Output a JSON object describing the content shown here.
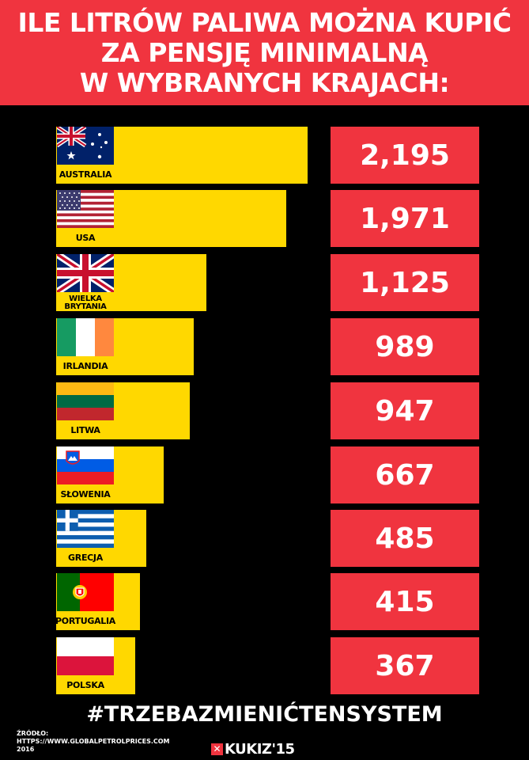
{
  "header": {
    "line1": "ILE LITRÓW PALIWA MOŻNA KUPIĆ",
    "line2": "ZA PENSJĘ MINIMALNĄ",
    "line3": "W WYBRANYCH KRAJACH:"
  },
  "chart_data": {
    "type": "bar",
    "title": "ILE LITRÓW PALIWA MOŻNA KUPIĆ ZA PENSJĘ MINIMALNĄ W WYBRANYCH KRAJACH:",
    "categories": [
      "AUSTRALIA",
      "USA",
      "WIELKA BRYTANIA",
      "IRLANDIA",
      "LITWA",
      "SŁOWENIA",
      "GRECJA",
      "PORTUGALIA",
      "POLSKA"
    ],
    "values": [
      2195,
      1971,
      1125,
      989,
      947,
      667,
      485,
      415,
      367
    ],
    "value_labels": [
      "2,195",
      "1,971",
      "1,125",
      "989",
      "947",
      "667",
      "485",
      "415",
      "367"
    ],
    "orientation": "horizontal"
  },
  "rows": [
    {
      "country": "AUSTRALIA",
      "value": "2,195",
      "flag": "australia-flag"
    },
    {
      "country": "USA",
      "value": "1,971",
      "flag": "usa-flag"
    },
    {
      "country_line1": "WIELKA",
      "country_line2": "BRYTANIA",
      "value": "1,125",
      "flag": "uk-flag"
    },
    {
      "country": "IRLANDIA",
      "value": "989",
      "flag": "ireland-flag"
    },
    {
      "country": "LITWA",
      "value": "947",
      "flag": "lithuania-flag"
    },
    {
      "country": "SŁOWENIA",
      "value": "667",
      "flag": "slovenia-flag"
    },
    {
      "country": "GRECJA",
      "value": "485",
      "flag": "greece-flag"
    },
    {
      "country": "PORTUGALIA",
      "value": "415",
      "flag": "portugal-flag"
    },
    {
      "country": "POLSKA",
      "value": "367",
      "flag": "poland-flag"
    }
  ],
  "footer": {
    "hashtag": "#TRZEBAZMIENIĆTENSYSTEM",
    "source_label": "ŹRÓDŁO:",
    "source_url": "HTTPS://WWW.GLOBALPETROLPRICES.COM",
    "source_year": "2016",
    "logo_text": "KUKIZ'15"
  },
  "colors": {
    "background": "#000000",
    "accent_red": "#f0343f",
    "bar_yellow": "#ffd800",
    "text_white": "#ffffff"
  }
}
